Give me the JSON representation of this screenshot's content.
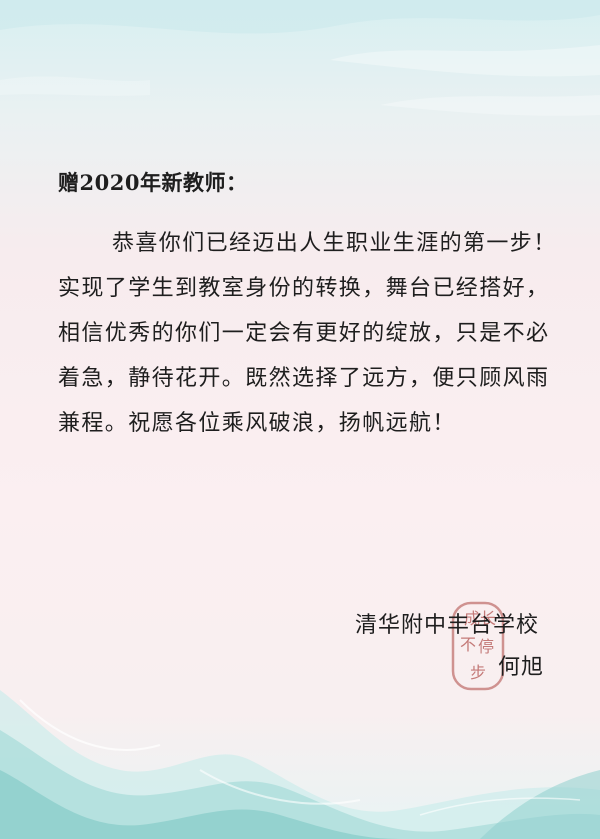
{
  "letter": {
    "title": "赠2020年新教师：",
    "body": "恭喜你们已经迈出人生职业生涯的第一步！实现了学生到教室身份的转换，舞台已经搭好，相信优秀的你们一定会有更好的绽放，只是不必着急，静待花开。既然选择了远方，便只顾风雨兼程。祝愿各位乘风破浪，扬帆远航！",
    "signature": {
      "school": "清华附中丰台学校",
      "name": "何旭"
    },
    "seal": {
      "chars": [
        "成",
        "长",
        "不",
        "停",
        "步"
      ],
      "color": "#c47a78"
    }
  },
  "theme": {
    "top_tint": "#d7eff1",
    "paper": "#fbeff1",
    "wave_color": "#9fd6d4",
    "text_color": "#1e1e1e"
  }
}
